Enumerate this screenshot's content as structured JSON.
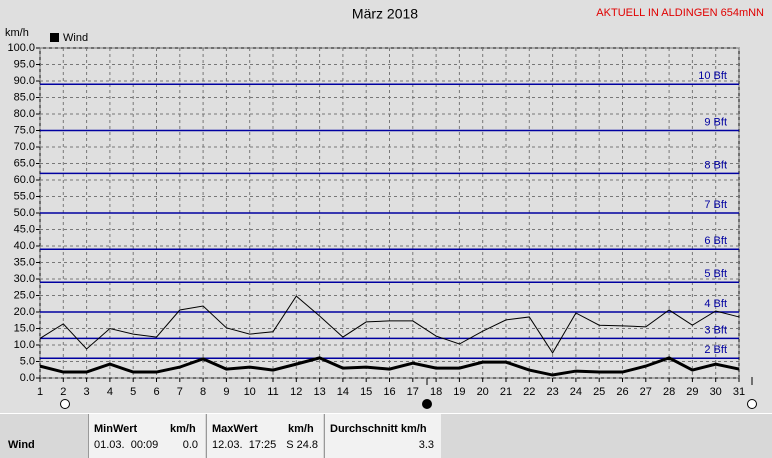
{
  "chart_data": {
    "type": "line",
    "title": "März 2018",
    "header": "AKTUELL IN ALDINGEN 654mNN",
    "y_label": "km/h",
    "x": [
      1,
      2,
      3,
      4,
      5,
      6,
      7,
      8,
      9,
      10,
      11,
      12,
      13,
      14,
      15,
      16,
      17,
      18,
      19,
      20,
      21,
      22,
      23,
      24,
      25,
      26,
      27,
      28,
      29,
      30,
      31
    ],
    "series": [
      {
        "name": "Wind",
        "color": "#000000",
        "values": [
          3.6,
          1.8,
          1.8,
          4.2,
          1.8,
          1.8,
          3.3,
          5.8,
          2.7,
          3.3,
          2.4,
          4.2,
          6.1,
          3.0,
          3.3,
          2.7,
          4.5,
          3.0,
          3.0,
          4.8,
          4.8,
          2.4,
          0.9,
          2.1,
          1.8,
          1.8,
          3.6,
          6.1,
          2.4,
          4.2,
          2.7
        ]
      },
      {
        "color": "#000000",
        "values": [
          12.0,
          16.4,
          8.8,
          15.0,
          13.3,
          12.4,
          20.6,
          21.8,
          15.2,
          13.3,
          14.0,
          24.8,
          18.8,
          12.4,
          17.0,
          17.3,
          17.3,
          12.7,
          10.3,
          14.2,
          17.6,
          18.5,
          7.6,
          19.7,
          16.0,
          15.8,
          15.5,
          20.6,
          16.0,
          20.3,
          18.5
        ]
      }
    ],
    "xlim": [
      1,
      31
    ],
    "xticks": [
      1,
      2,
      3,
      4,
      5,
      6,
      7,
      8,
      9,
      10,
      11,
      12,
      13,
      14,
      15,
      16,
      17,
      18,
      19,
      20,
      21,
      22,
      23,
      24,
      25,
      26,
      27,
      28,
      29,
      30,
      31
    ],
    "ylim": [
      0,
      100
    ],
    "yticks": [
      {
        "value": 0,
        "label": "0.0"
      },
      {
        "value": 5,
        "label": "5.0"
      },
      {
        "value": 10,
        "label": "10.0"
      },
      {
        "value": 15,
        "label": "15.0"
      },
      {
        "value": 20,
        "label": "20.0"
      },
      {
        "value": 25,
        "label": "25.0"
      },
      {
        "value": 30,
        "label": "30.0"
      },
      {
        "value": 35,
        "label": "35.0"
      },
      {
        "value": 40,
        "label": "40.0"
      },
      {
        "value": 45,
        "label": "45.0"
      },
      {
        "value": 50,
        "label": "50.0"
      },
      {
        "value": 55,
        "label": "55.0"
      },
      {
        "value": 60,
        "label": "60.0"
      },
      {
        "value": 65,
        "label": "65.0"
      },
      {
        "value": 70,
        "label": "70.0"
      },
      {
        "value": 75,
        "label": "75.0"
      },
      {
        "value": 80,
        "label": "80.0"
      },
      {
        "value": 85,
        "label": "85.0"
      },
      {
        "value": 90,
        "label": "90.0"
      },
      {
        "value": 95,
        "label": "95.0"
      },
      {
        "value": 100,
        "label": "100.0"
      }
    ],
    "grid": true,
    "bft_lines": [
      {
        "value": 6,
        "label": "2 Bft"
      },
      {
        "value": 12,
        "label": "3 Bft"
      },
      {
        "value": 20,
        "label": "4 Bft"
      },
      {
        "value": 29,
        "label": "5 Bft"
      },
      {
        "value": 39,
        "label": "6 Bft"
      },
      {
        "value": 50,
        "label": "7 Bft"
      },
      {
        "value": 62,
        "label": "8 Bft"
      },
      {
        "value": 75,
        "label": "9 Bft"
      },
      {
        "value": 89,
        "label": "10 Bft"
      }
    ]
  },
  "table": {
    "row_label": "Wind",
    "min": {
      "title": "MinWert",
      "unit": "km/h",
      "time": "01.03.  00:09",
      "value": "0.0"
    },
    "max": {
      "title": "MaxWert",
      "unit": "km/h",
      "time": "12.03.  17:25",
      "value": "S 24.8"
    },
    "avg": {
      "title": "Durchschnitt km/h",
      "value": "3.3"
    }
  }
}
